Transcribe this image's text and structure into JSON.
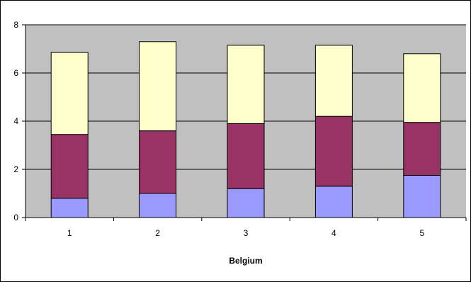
{
  "chart_data": {
    "type": "bar",
    "stacked": true,
    "categories": [
      "1",
      "2",
      "3",
      "4",
      "5"
    ],
    "series": [
      {
        "values": [
          0.8,
          1.0,
          1.2,
          1.3,
          1.75
        ]
      },
      {
        "values": [
          2.65,
          2.6,
          2.7,
          2.9,
          2.2
        ]
      },
      {
        "values": [
          3.4,
          3.7,
          3.25,
          2.95,
          2.85
        ]
      }
    ],
    "colors": [
      "#9999ff",
      "#993366",
      "#ffffcc"
    ],
    "plot_background": "#c0c0c0",
    "grid": true,
    "legend": "none",
    "xlabel": "Belgium",
    "ylabel": "",
    "ylim": [
      0,
      8
    ],
    "yticks": [
      "0",
      "2",
      "4",
      "6",
      "8"
    ]
  }
}
